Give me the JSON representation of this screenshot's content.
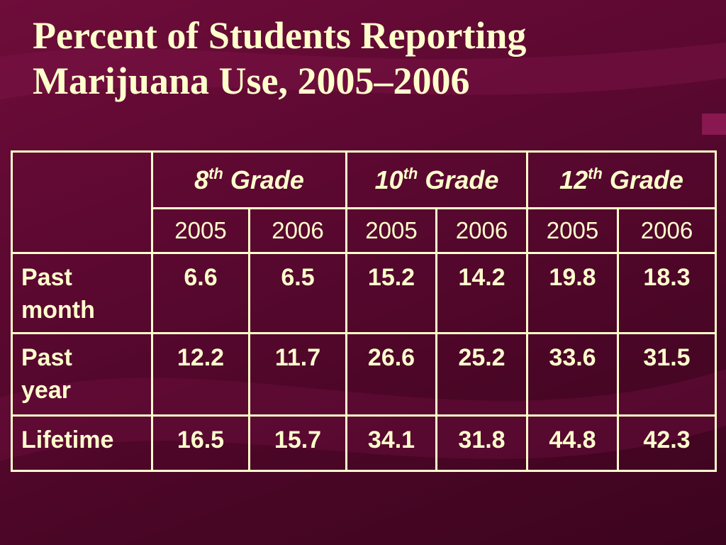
{
  "title": [
    "Percent of Students Reporting",
    "Marijuana Use, 2005–2006"
  ],
  "table": {
    "groups": [
      {
        "number": "8",
        "suffix": "th",
        "word": "Grade"
      },
      {
        "number": "10",
        "suffix": "th",
        "word": "Grade"
      },
      {
        "number": "12",
        "suffix": "th",
        "word": "Grade"
      }
    ],
    "years": [
      "2005",
      "2006",
      "2005",
      "2006",
      "2005",
      "2006"
    ],
    "rows": [
      {
        "label": [
          "Past",
          "month"
        ],
        "values": [
          6.6,
          6.5,
          15.2,
          14.2,
          19.8,
          18.3
        ]
      },
      {
        "label": [
          "Past",
          "year"
        ],
        "values": [
          12.2,
          11.7,
          26.6,
          25.2,
          33.6,
          31.5
        ]
      },
      {
        "label": [
          "Lifetime"
        ],
        "values": [
          16.5,
          15.7,
          34.1,
          31.8,
          44.8,
          42.3
        ]
      }
    ]
  }
}
